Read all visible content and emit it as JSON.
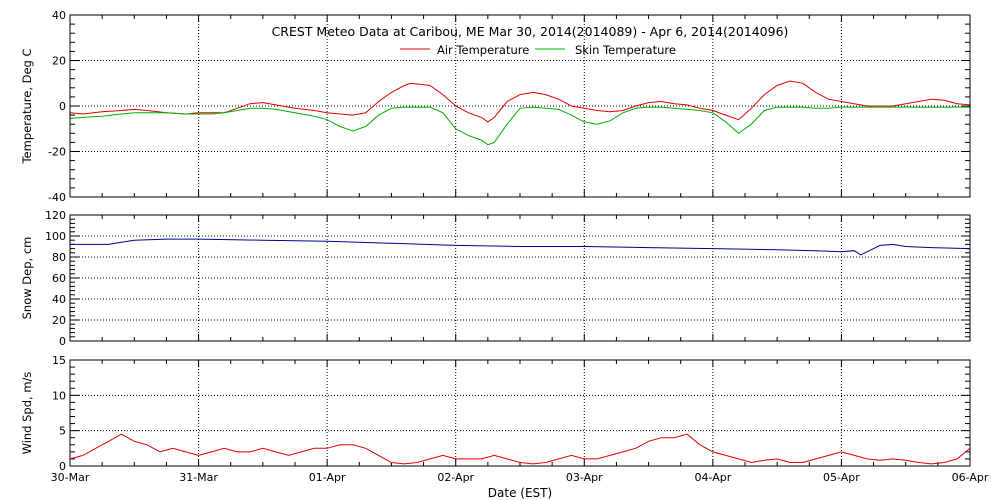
{
  "header": {
    "title": "CREST Meteo Data at Caribou, ME   Mar 30, 2014(2014089) - Apr  6, 2014(2014096)"
  },
  "xaxis": {
    "label": "Date (EST)",
    "ticks": [
      "30-Mar",
      "31-Mar",
      "01-Apr",
      "02-Apr",
      "03-Apr",
      "04-Apr",
      "05-Apr",
      "06-Apr"
    ]
  },
  "colors": {
    "air": "#e00000",
    "skin": "#00b000",
    "snow": "#00008b",
    "wind": "#e00000",
    "axes": "#000000"
  },
  "chart_data": [
    {
      "type": "line",
      "title": "CREST Meteo Data at Caribou, ME   Mar 30, 2014(2014089) - Apr  6, 2014(2014096)",
      "xlabel": "Date (EST)",
      "ylabel": "Temperature, Deg C",
      "ylim": [
        -40,
        40
      ],
      "yticks": [
        -40,
        -20,
        0,
        20,
        40
      ],
      "xlim": [
        0,
        7
      ],
      "legend": "top-center",
      "grid": true,
      "series": [
        {
          "name": "Air Temperature",
          "color": "#e00000",
          "x": [
            0,
            0.1,
            0.25,
            0.4,
            0.5,
            0.6,
            0.75,
            0.9,
            1.0,
            1.1,
            1.2,
            1.3,
            1.4,
            1.5,
            1.6,
            1.75,
            1.9,
            2.0,
            2.1,
            2.2,
            2.3,
            2.4,
            2.5,
            2.6,
            2.65,
            2.8,
            2.9,
            3.0,
            3.1,
            3.2,
            3.25,
            3.3,
            3.4,
            3.5,
            3.6,
            3.7,
            3.8,
            3.9,
            4.0,
            4.1,
            4.2,
            4.3,
            4.4,
            4.5,
            4.6,
            4.7,
            4.8,
            4.9,
            5.0,
            5.1,
            5.2,
            5.3,
            5.4,
            5.5,
            5.6,
            5.7,
            5.8,
            5.9,
            6.0,
            6.2,
            6.4,
            6.6,
            6.7,
            6.8,
            6.9,
            7.0
          ],
          "values": [
            -3,
            -3.5,
            -2.5,
            -2,
            -1.5,
            -2,
            -3,
            -3.5,
            -3,
            -3,
            -3,
            -1,
            1,
            1.5,
            0.5,
            -1,
            -2,
            -3,
            -3.5,
            -4,
            -3,
            2,
            6,
            9,
            10,
            9,
            5,
            0,
            -3,
            -5,
            -7,
            -5,
            2,
            5,
            6,
            5,
            3,
            0,
            -1,
            -2,
            -2.5,
            -2,
            0,
            1.5,
            2,
            1,
            0.5,
            -1,
            -2,
            -4,
            -6,
            -1,
            5,
            9,
            11,
            10,
            6,
            3,
            2,
            0,
            0,
            2,
            3,
            2.5,
            1,
            0.5
          ]
        },
        {
          "name": "Skin Temperature",
          "color": "#00b000",
          "x": [
            0,
            0.1,
            0.25,
            0.4,
            0.5,
            0.6,
            0.75,
            0.9,
            1.0,
            1.1,
            1.2,
            1.3,
            1.4,
            1.5,
            1.6,
            1.75,
            1.9,
            2.0,
            2.1,
            2.2,
            2.3,
            2.4,
            2.5,
            2.6,
            2.65,
            2.8,
            2.9,
            3.0,
            3.1,
            3.2,
            3.25,
            3.3,
            3.4,
            3.5,
            3.6,
            3.7,
            3.8,
            3.9,
            4.0,
            4.1,
            4.2,
            4.3,
            4.4,
            4.5,
            4.6,
            4.7,
            4.8,
            4.9,
            5.0,
            5.1,
            5.2,
            5.3,
            5.4,
            5.5,
            5.6,
            5.7,
            5.8,
            5.9,
            6.0,
            6.2,
            6.4,
            6.6,
            6.7,
            6.8,
            6.9,
            7.0
          ],
          "values": [
            -5.5,
            -5,
            -4.5,
            -3.5,
            -3,
            -3,
            -3,
            -3.5,
            -3.5,
            -3.5,
            -3,
            -2,
            -1,
            -1,
            -1.5,
            -3,
            -4.5,
            -6,
            -9,
            -11,
            -9,
            -4,
            -1,
            -0.5,
            -0.5,
            -0.5,
            -3,
            -10,
            -13,
            -15,
            -17,
            -16,
            -8,
            -1,
            -0.5,
            -1,
            -1.5,
            -4,
            -7,
            -8,
            -6.5,
            -3,
            -1,
            -0.5,
            -0.5,
            -1,
            -1.5,
            -2,
            -3,
            -7,
            -12,
            -8,
            -2,
            -0.5,
            -0.5,
            -0.5,
            -1,
            -1,
            -0.5,
            -0.5,
            -0.5,
            -0.5,
            -0.5,
            -0.5,
            -0.5,
            -0.5
          ]
        }
      ]
    },
    {
      "type": "line",
      "xlabel": "Date (EST)",
      "ylabel": "Snow Dep, cm",
      "ylim": [
        0,
        120
      ],
      "yticks": [
        0,
        20,
        40,
        60,
        80,
        100,
        120
      ],
      "xlim": [
        0,
        7
      ],
      "grid": true,
      "series": [
        {
          "color": "#00008b",
          "x": [
            0,
            0.3,
            0.4,
            0.5,
            0.75,
            1.0,
            1.5,
            2.0,
            2.5,
            3.0,
            3.5,
            4.0,
            4.5,
            5.0,
            5.5,
            5.8,
            6.0,
            6.1,
            6.15,
            6.25,
            6.3,
            6.4,
            6.5,
            6.7,
            7.0
          ],
          "values": [
            92,
            92,
            94,
            96,
            97,
            97,
            96,
            95,
            93,
            91,
            90,
            90,
            89,
            88,
            87,
            86,
            85,
            86,
            82,
            88,
            91,
            92,
            90,
            89,
            88
          ]
        }
      ]
    },
    {
      "type": "line",
      "xlabel": "Date (EST)",
      "ylabel": "Wind Spd, m/s",
      "ylim": [
        0,
        15
      ],
      "yticks": [
        0,
        5,
        10,
        15
      ],
      "xlim": [
        0,
        7
      ],
      "grid": true,
      "series": [
        {
          "color": "#e00000",
          "x": [
            0,
            0.1,
            0.2,
            0.3,
            0.4,
            0.5,
            0.6,
            0.7,
            0.8,
            0.9,
            1.0,
            1.1,
            1.2,
            1.3,
            1.4,
            1.5,
            1.6,
            1.7,
            1.8,
            1.9,
            2.0,
            2.1,
            2.2,
            2.3,
            2.4,
            2.5,
            2.6,
            2.7,
            2.8,
            2.9,
            3.0,
            3.1,
            3.2,
            3.3,
            3.4,
            3.5,
            3.6,
            3.7,
            3.8,
            3.9,
            4.0,
            4.1,
            4.2,
            4.3,
            4.4,
            4.5,
            4.6,
            4.7,
            4.8,
            4.9,
            5.0,
            5.1,
            5.2,
            5.3,
            5.4,
            5.5,
            5.6,
            5.7,
            5.8,
            5.9,
            6.0,
            6.1,
            6.2,
            6.3,
            6.4,
            6.5,
            6.6,
            6.7,
            6.8,
            6.9,
            7.0
          ],
          "values": [
            1.0,
            1.5,
            2.5,
            3.5,
            4.5,
            3.5,
            3.0,
            2.0,
            2.5,
            2.0,
            1.5,
            2.0,
            2.5,
            2.0,
            2.0,
            2.5,
            2.0,
            1.5,
            2.0,
            2.5,
            2.5,
            3.0,
            3.0,
            2.5,
            1.5,
            0.5,
            0.3,
            0.5,
            1.0,
            1.5,
            1.0,
            1.0,
            1.0,
            1.5,
            1.0,
            0.5,
            0.3,
            0.5,
            1.0,
            1.5,
            1.0,
            1.0,
            1.5,
            2.0,
            2.5,
            3.5,
            4.0,
            4.0,
            4.5,
            3.0,
            2.0,
            1.5,
            1.0,
            0.5,
            0.8,
            1.0,
            0.5,
            0.5,
            1.0,
            1.5,
            2.0,
            1.5,
            1.0,
            0.8,
            1.0,
            0.8,
            0.5,
            0.3,
            0.5,
            1.0,
            2.5
          ]
        }
      ]
    }
  ]
}
